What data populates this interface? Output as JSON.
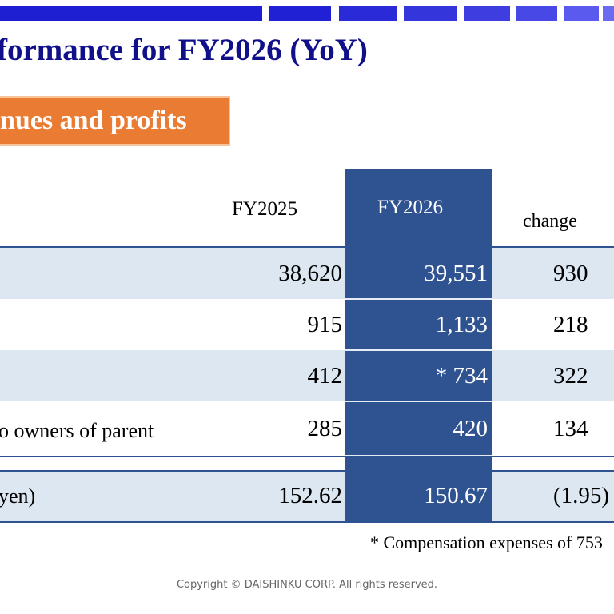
{
  "header": {
    "title": "formance for FY2026 (YoY)"
  },
  "section": {
    "label": "nues and profits"
  },
  "table": {
    "columns": [
      "FY2025",
      "FY2026",
      "change"
    ],
    "rows": [
      {
        "label": "",
        "fy2025": "38,620",
        "fy2026": "39,551",
        "change": "930"
      },
      {
        "label": "",
        "fy2025": "915",
        "fy2026": "1,133",
        "change": "218"
      },
      {
        "label": "",
        "fy2025": "412",
        "fy2026": "* 734",
        "change": "322"
      },
      {
        "label": "o owners of parent",
        "fy2025": "285",
        "fy2026": "420",
        "change": "134"
      },
      {
        "label": "yen)",
        "fy2025": "152.62",
        "fy2026": "150.67",
        "change": "(1.95)"
      }
    ]
  },
  "footnote": "* Compensation expenses of 753",
  "footer": {
    "copyright": "Copyright © DAISHINKU CORP. All rights reserved."
  },
  "colors": {
    "title": "#10108a",
    "accent_orange": "#e97b32",
    "column_highlight": "#2f5291",
    "row_shade": "#dce7f2",
    "bar_blue": "#1e1ed2"
  }
}
